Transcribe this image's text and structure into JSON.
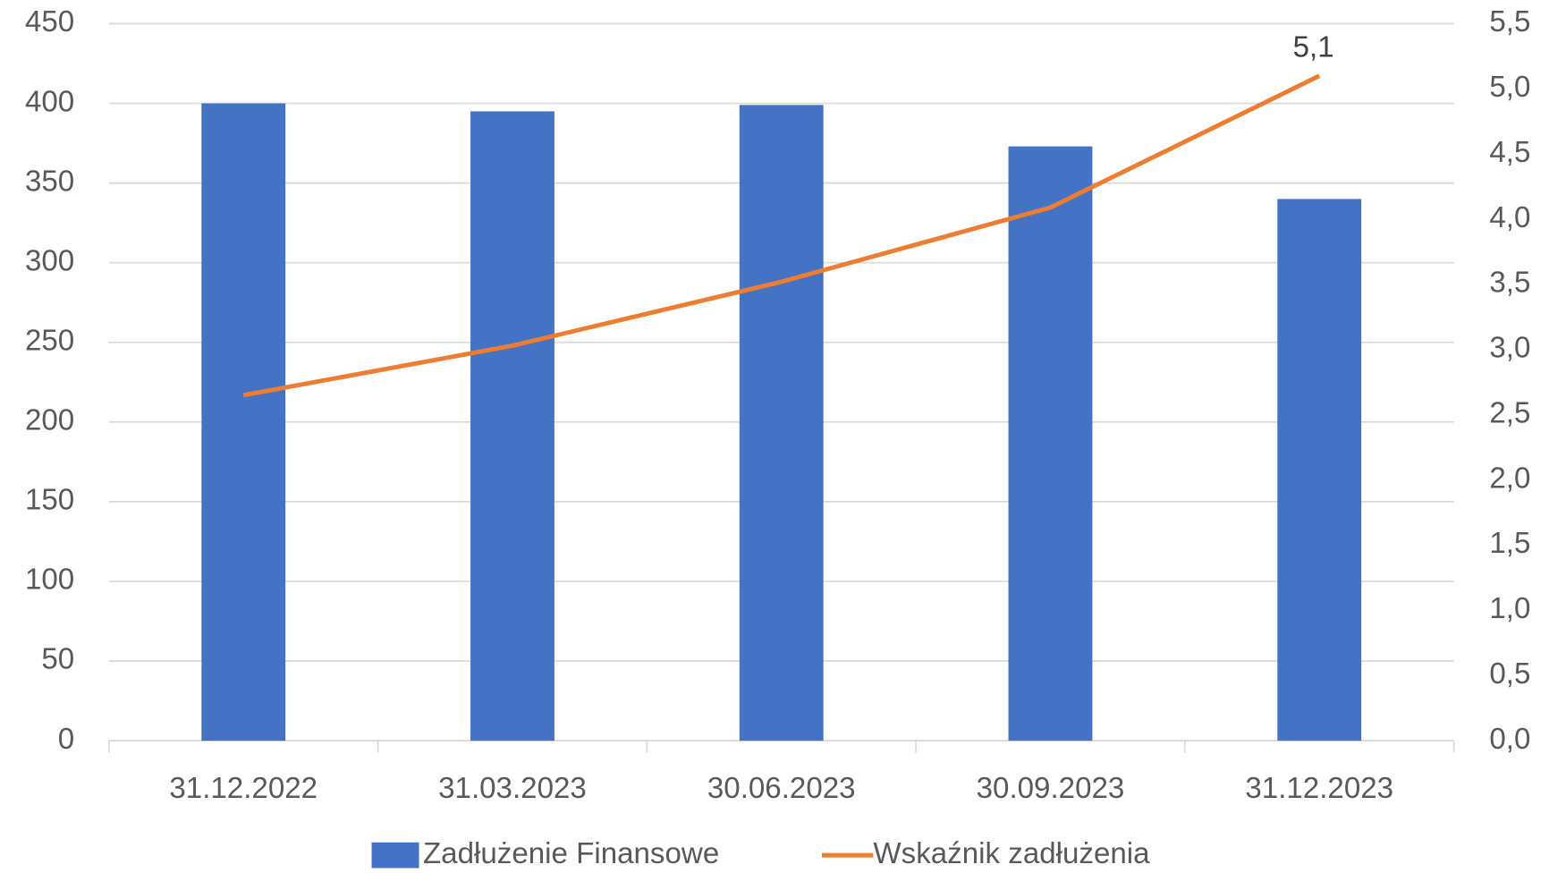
{
  "chart_data": {
    "type": "bar",
    "categories": [
      "31.12.2022",
      "31.03.2023",
      "30.06.2023",
      "30.09.2023",
      "31.12.2023"
    ],
    "series": [
      {
        "name": "Zadłużenie Finansowe",
        "type": "bar",
        "color": "#4472c4",
        "values": [
          400,
          395,
          399,
          373,
          340
        ]
      },
      {
        "name": "Wskaźnik zadłużenia",
        "type": "line",
        "axis": "y2",
        "color": "#ed7d31",
        "values": [
          2.65,
          3.03,
          3.52,
          4.09,
          5.1
        ],
        "value_labels": [
          null,
          null,
          null,
          null,
          "5,1"
        ]
      }
    ],
    "ylim": [
      0,
      450
    ],
    "yticks": [
      0,
      50,
      100,
      150,
      200,
      250,
      300,
      350,
      400,
      450
    ],
    "y2lim": [
      0,
      5.5
    ],
    "y2ticks": [
      {
        "value": 0,
        "label": "0,0"
      },
      {
        "value": 0.5,
        "label": "0,5"
      },
      {
        "value": 1,
        "label": "1,0"
      },
      {
        "value": 1.5,
        "label": "1,5"
      },
      {
        "value": 2,
        "label": "2,0"
      },
      {
        "value": 2.5,
        "label": "2,5"
      },
      {
        "value": 3,
        "label": "3,0"
      },
      {
        "value": 3.5,
        "label": "3,5"
      },
      {
        "value": 4,
        "label": "4,0"
      },
      {
        "value": 4.5,
        "label": "4,5"
      },
      {
        "value": 5,
        "label": "5,0"
      },
      {
        "value": 5.5,
        "label": "5,5"
      }
    ],
    "grid": true,
    "legend": "bottom"
  }
}
